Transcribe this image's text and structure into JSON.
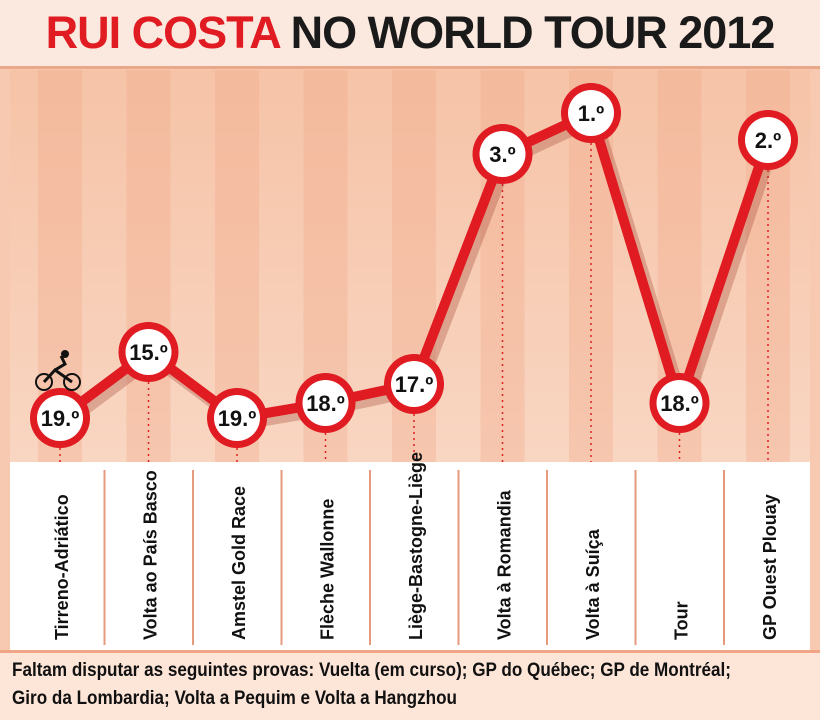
{
  "title": {
    "part1": "RUI COSTA",
    "part2": "NO WORLD TOUR 2012"
  },
  "chart_data": {
    "type": "line",
    "title": "RUI COSTA NO WORLD TOUR 2012",
    "categories": [
      "Tirreno-Adriático",
      "Volta ao País Basco",
      "Amstel Gold Race",
      "Flèche Wallonne",
      "Liège-Bastogne-Liège",
      "Volta à Romandia",
      "Volta à Suíça",
      "Tour",
      "GP Ouest Plouay"
    ],
    "values": [
      19,
      15,
      19,
      18,
      17,
      3,
      1,
      18,
      2
    ],
    "labels": [
      "19.º",
      "15.º",
      "19.º",
      "18.º",
      "17.º",
      "3.º",
      "1.º",
      "18.º",
      "2.º"
    ],
    "y_inverted": true,
    "colors": {
      "line": "#e01b22",
      "marker_fill": "#ffffff",
      "title_red": "#e01b22"
    }
  },
  "footer": {
    "line1": "Faltam disputar as seguintes provas: Vuelta (em curso); GP do Québec; GP de Montréal;",
    "line2": "Giro da Lombardia; Volta a Pequim e Volta a Hangzhou"
  },
  "icons": {
    "cyclist": "cyclist-icon"
  }
}
